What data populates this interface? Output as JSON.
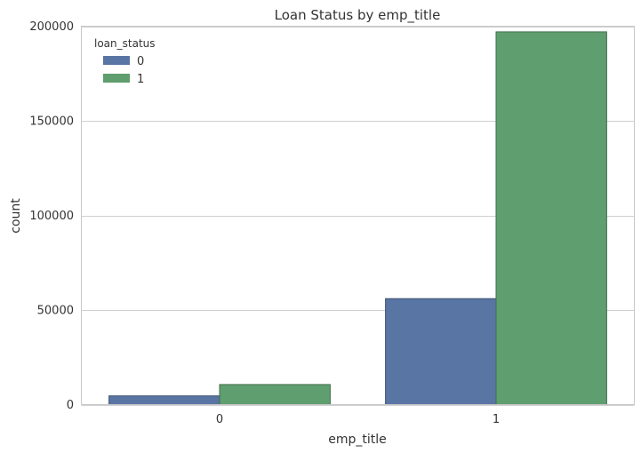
{
  "chart_data": {
    "type": "bar",
    "title": "Loan Status by emp_title",
    "xlabel": "emp_title",
    "ylabel": "count",
    "categories": [
      "0",
      "1"
    ],
    "series": [
      {
        "name": "0",
        "values": [
          4600,
          56000
        ]
      },
      {
        "name": "1",
        "values": [
          10600,
          197000
        ]
      }
    ],
    "ylim": [
      0,
      200000
    ],
    "yticks": [
      0,
      50000,
      100000,
      150000,
      200000
    ],
    "ytick_labels": [
      "0",
      "50000",
      "100000",
      "150000",
      "200000"
    ],
    "grid": true,
    "legend": {
      "title": "loan_status",
      "placement": "top-left"
    },
    "colors": {
      "series": [
        "#5975a4",
        "#5f9e6e"
      ],
      "edge": [
        "#3e5270",
        "#406e4d"
      ],
      "grid": "#d0d0d0",
      "frame": "#c8c8c8"
    }
  }
}
